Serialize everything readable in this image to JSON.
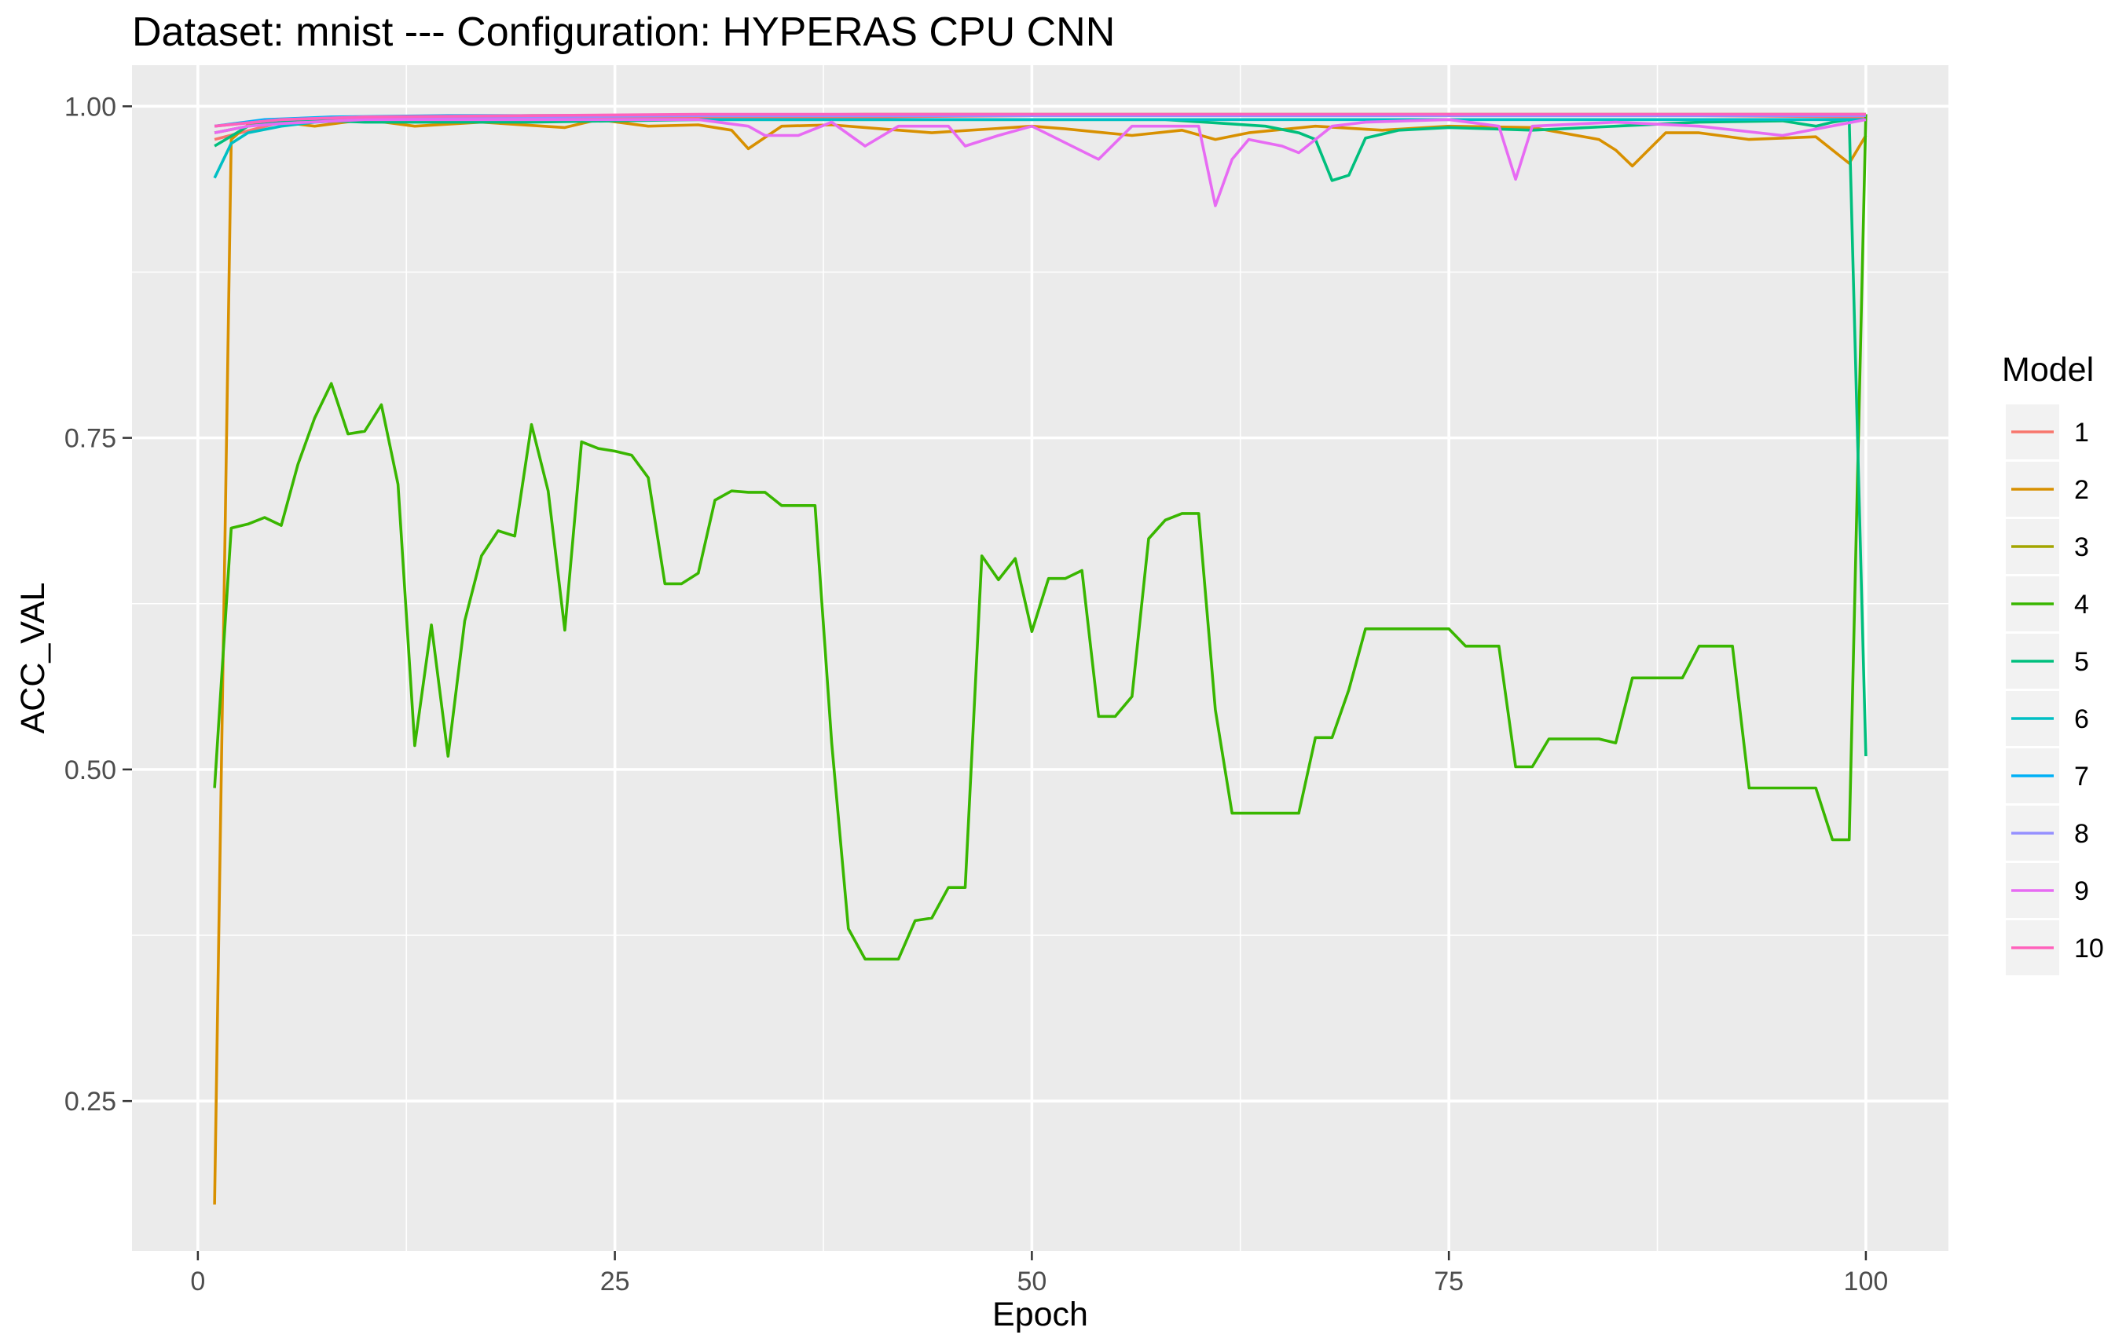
{
  "chart_data": {
    "type": "line",
    "title": "Dataset:  mnist  --- Configuration:  HYPERAS CPU CNN",
    "xlabel": "Epoch",
    "ylabel": "ACC_VAL",
    "xlim": [
      -3.95,
      104.95
    ],
    "ylim": [
      0.137,
      1.031
    ],
    "x_ticks": [
      0,
      25,
      50,
      75,
      100
    ],
    "x_tick_labels": [
      "0",
      "25",
      "50",
      "75",
      "100"
    ],
    "y_ticks": [
      0.25,
      0.5,
      0.75,
      1.0
    ],
    "y_tick_labels": [
      "0.25",
      "0.50",
      "0.75",
      "1.00"
    ],
    "grid": true,
    "legend": {
      "title": "Model",
      "position": "right"
    },
    "colors": {
      "panel": "#EBEBEB",
      "grid": "#FFFFFF",
      "series": [
        "#F8766D",
        "#D89000",
        "#A3A500",
        "#39B600",
        "#00BF7D",
        "#00BFC4",
        "#00B0F6",
        "#9590FF",
        "#E76BF3",
        "#FF62BC"
      ]
    },
    "series": [
      {
        "name": "1",
        "x": [
          1,
          5,
          10,
          20,
          30,
          40,
          50,
          60,
          70,
          80,
          90,
          100
        ],
        "values": [
          0.975,
          0.988,
          0.99,
          0.991,
          0.992,
          0.992,
          0.993,
          0.993,
          0.993,
          0.993,
          0.993,
          0.992
        ]
      },
      {
        "name": "2",
        "x": [
          1,
          2,
          3,
          5,
          7,
          10,
          13,
          17,
          22,
          24,
          27,
          30,
          32,
          33,
          35,
          38,
          40,
          44,
          50,
          52,
          56,
          59,
          61,
          63,
          67,
          71,
          75,
          80,
          84,
          85,
          86,
          88,
          90,
          93,
          97,
          99,
          100
        ],
        "values": [
          0.172,
          0.975,
          0.986,
          0.988,
          0.985,
          0.99,
          0.985,
          0.988,
          0.984,
          0.99,
          0.985,
          0.986,
          0.982,
          0.968,
          0.985,
          0.986,
          0.984,
          0.98,
          0.985,
          0.983,
          0.978,
          0.982,
          0.975,
          0.98,
          0.985,
          0.982,
          0.985,
          0.984,
          0.975,
          0.967,
          0.955,
          0.98,
          0.98,
          0.975,
          0.977,
          0.957,
          0.978
        ]
      },
      {
        "name": "3",
        "x": [
          1,
          5,
          10,
          20,
          30,
          40,
          50,
          60,
          70,
          80,
          90,
          100
        ],
        "values": [
          0.98,
          0.99,
          0.992,
          0.993,
          0.993,
          0.994,
          0.994,
          0.994,
          0.994,
          0.994,
          0.994,
          0.994
        ]
      },
      {
        "name": "4",
        "x": [
          1,
          2,
          3,
          4,
          5,
          6,
          7,
          8,
          9,
          10,
          11,
          12,
          13,
          14,
          15,
          16,
          17,
          18,
          19,
          20,
          21,
          22,
          23,
          24,
          25,
          26,
          27,
          28,
          29,
          30,
          31,
          32,
          33,
          34,
          35,
          36,
          37,
          38,
          39,
          40,
          41,
          42,
          43,
          44,
          45,
          46,
          47,
          48,
          49,
          50,
          51,
          52,
          53,
          54,
          55,
          56,
          57,
          58,
          59,
          60,
          61,
          62,
          63,
          64,
          65,
          66,
          67,
          68,
          69,
          70,
          71,
          72,
          73,
          74,
          75,
          76,
          77,
          78,
          79,
          80,
          81,
          82,
          83,
          84,
          85,
          86,
          87,
          88,
          89,
          90,
          91,
          92,
          93,
          94,
          95,
          96,
          97,
          98,
          99,
          100
        ],
        "values": [
          0.486,
          0.682,
          0.685,
          0.69,
          0.684,
          0.73,
          0.765,
          0.791,
          0.753,
          0.755,
          0.775,
          0.715,
          0.518,
          0.609,
          0.51,
          0.612,
          0.661,
          0.68,
          0.676,
          0.76,
          0.71,
          0.605,
          0.747,
          0.742,
          0.74,
          0.737,
          0.72,
          0.64,
          0.64,
          0.648,
          0.703,
          0.71,
          0.709,
          0.709,
          0.699,
          0.699,
          0.699,
          0.52,
          0.38,
          0.357,
          0.357,
          0.357,
          0.386,
          0.388,
          0.411,
          0.411,
          0.661,
          0.643,
          0.659,
          0.604,
          0.644,
          0.644,
          0.65,
          0.54,
          0.54,
          0.555,
          0.674,
          0.688,
          0.693,
          0.693,
          0.545,
          0.467,
          0.467,
          0.467,
          0.467,
          0.467,
          0.524,
          0.524,
          0.56,
          0.606,
          0.606,
          0.606,
          0.606,
          0.606,
          0.606,
          0.593,
          0.593,
          0.593,
          0.502,
          0.502,
          0.523,
          0.523,
          0.523,
          0.523,
          0.52,
          0.569,
          0.569,
          0.569,
          0.569,
          0.593,
          0.593,
          0.593,
          0.486,
          0.486,
          0.486,
          0.486,
          0.486,
          0.447,
          0.447,
          0.994
        ]
      },
      {
        "name": "5",
        "x": [
          1,
          3,
          6,
          10,
          20,
          30,
          40,
          50,
          58,
          64,
          66,
          67,
          68,
          69,
          70,
          72,
          75,
          80,
          85,
          90,
          95,
          97,
          98,
          99,
          100
        ],
        "values": [
          0.97,
          0.985,
          0.99,
          0.988,
          0.988,
          0.99,
          0.99,
          0.99,
          0.99,
          0.985,
          0.98,
          0.975,
          0.944,
          0.948,
          0.976,
          0.982,
          0.984,
          0.982,
          0.985,
          0.988,
          0.989,
          0.985,
          0.988,
          0.99,
          0.51
        ]
      },
      {
        "name": "6",
        "x": [
          1,
          2,
          3,
          5,
          7,
          10,
          20,
          30,
          40,
          50,
          60,
          70,
          80,
          90,
          100
        ],
        "values": [
          0.946,
          0.972,
          0.98,
          0.985,
          0.988,
          0.99,
          0.99,
          0.99,
          0.99,
          0.99,
          0.99,
          0.99,
          0.99,
          0.99,
          0.99
        ]
      },
      {
        "name": "7",
        "x": [
          1,
          4,
          8,
          15,
          25,
          35,
          45,
          55,
          65,
          75,
          85,
          95,
          100
        ],
        "values": [
          0.985,
          0.99,
          0.992,
          0.993,
          0.993,
          0.993,
          0.993,
          0.993,
          0.993,
          0.993,
          0.993,
          0.993,
          0.993
        ]
      },
      {
        "name": "8",
        "x": [
          1,
          5,
          10,
          20,
          30,
          40,
          50,
          60,
          70,
          80,
          90,
          100
        ],
        "values": [
          0.985,
          0.99,
          0.992,
          0.992,
          0.993,
          0.993,
          0.993,
          0.993,
          0.993,
          0.993,
          0.993,
          0.993
        ]
      },
      {
        "name": "9",
        "x": [
          1,
          3,
          5,
          10,
          20,
          30,
          33,
          34,
          36,
          38,
          40,
          42,
          45,
          46,
          48,
          50,
          54,
          56,
          58,
          60,
          61,
          62,
          63,
          65,
          66,
          68,
          70,
          75,
          78,
          79,
          80,
          85,
          90,
          95,
          100
        ],
        "values": [
          0.98,
          0.985,
          0.987,
          0.99,
          0.99,
          0.99,
          0.985,
          0.978,
          0.978,
          0.988,
          0.97,
          0.985,
          0.985,
          0.97,
          0.978,
          0.985,
          0.96,
          0.985,
          0.985,
          0.985,
          0.925,
          0.96,
          0.975,
          0.97,
          0.965,
          0.985,
          0.988,
          0.99,
          0.985,
          0.945,
          0.985,
          0.988,
          0.985,
          0.978,
          0.99
        ]
      },
      {
        "name": "10",
        "x": [
          1,
          5,
          10,
          20,
          30,
          40,
          50,
          60,
          70,
          80,
          90,
          100
        ],
        "values": [
          0.985,
          0.99,
          0.992,
          0.993,
          0.994,
          0.994,
          0.994,
          0.994,
          0.994,
          0.994,
          0.994,
          0.994
        ]
      }
    ]
  }
}
